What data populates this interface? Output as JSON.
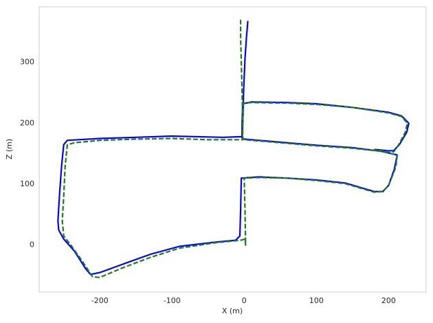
{
  "chart_data": {
    "type": "line",
    "xlabel": "X (m)",
    "ylabel": "Z (m)",
    "xlim": [
      -284,
      252
    ],
    "ylim": [
      -77,
      391
    ],
    "xticks": [
      -200,
      -100,
      0,
      100,
      200
    ],
    "yticks": [
      0,
      100,
      200,
      300
    ],
    "grid": false,
    "series": [
      {
        "color": "#0000ff",
        "linestyle": "solid",
        "x": [
          5,
          3,
          1,
          -1,
          -2,
          -3,
          -30,
          -100,
          -150,
          -200,
          -230,
          -245,
          -250,
          -253,
          -256,
          -258,
          -257,
          -250,
          -235,
          -220,
          -213,
          -200,
          -170,
          -130,
          -90,
          -40,
          -12,
          -6,
          -5,
          -4,
          20,
          60,
          100,
          140,
          160,
          180,
          192,
          200,
          208,
          212,
          190,
          150,
          100,
          50,
          0,
          -3,
          -3,
          -2,
          10,
          60,
          100,
          150,
          200,
          218,
          228,
          225,
          215,
          207,
          200,
          180
        ],
        "values": [
          368,
          340,
          305,
          250,
          200,
          178,
          177,
          179,
          177,
          175,
          173,
          172,
          165,
          130,
          80,
          40,
          25,
          10,
          -10,
          -38,
          -48,
          -45,
          -32,
          -15,
          -2,
          5,
          8,
          15,
          60,
          110,
          112,
          110,
          107,
          102,
          95,
          88,
          88,
          98,
          125,
          148,
          154,
          160,
          164,
          169,
          174,
          176,
          200,
          232,
          235,
          234,
          232,
          226,
          218,
          212,
          200,
          185,
          165,
          155,
          155,
          157
        ]
      },
      {
        "color": "#1f7a1f",
        "linestyle": "dashed",
        "x": [
          -5,
          -5,
          -4,
          -3,
          -2,
          -2,
          -50,
          -100,
          -150,
          -200,
          -235,
          -245,
          -248,
          -250,
          -252,
          -250,
          -240,
          -225,
          -210,
          -200,
          -170,
          -130,
          -90,
          -40,
          -5,
          1,
          2,
          1,
          0,
          20,
          60,
          100,
          140,
          160,
          180,
          192,
          200,
          210,
          212,
          190,
          150,
          100,
          50,
          0,
          -2,
          -2,
          -1,
          10,
          60,
          100,
          150,
          200,
          218,
          226,
          223,
          214,
          207,
          200,
          180
        ],
        "values": [
          370,
          340,
          300,
          250,
          200,
          173,
          173,
          175,
          174,
          172,
          168,
          165,
          130,
          80,
          40,
          15,
          0,
          -25,
          -52,
          -53,
          -38,
          -20,
          -5,
          4,
          8,
          10,
          0,
          60,
          110,
          111,
          110,
          106,
          101,
          94,
          87,
          88,
          98,
          128,
          148,
          154,
          159,
          163,
          168,
          173,
          176,
          200,
          233,
          234,
          233,
          231,
          226,
          217,
          211,
          200,
          185,
          165,
          153,
          154,
          156
        ]
      }
    ]
  }
}
